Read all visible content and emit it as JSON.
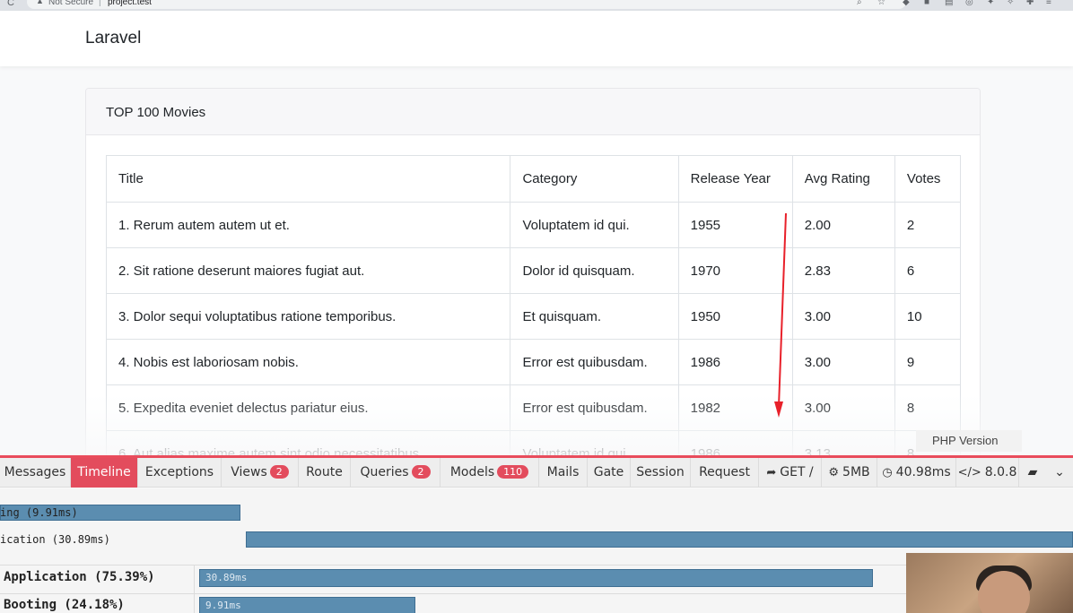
{
  "browser": {
    "not_secure": "Not Secure",
    "separator": "|",
    "url": "project.test"
  },
  "navbar": {
    "brand": "Laravel"
  },
  "card": {
    "title": "TOP 100 Movies",
    "columns": [
      "Title",
      "Category",
      "Release Year",
      "Avg Rating",
      "Votes"
    ],
    "rows": [
      {
        "title": "1. Rerum autem autem ut et.",
        "category": "Voluptatem id qui.",
        "year": "1955",
        "rating": "2.00",
        "votes": "2"
      },
      {
        "title": "2. Sit ratione deserunt maiores fugiat aut.",
        "category": "Dolor id quisquam.",
        "year": "1970",
        "rating": "2.83",
        "votes": "6"
      },
      {
        "title": "3. Dolor sequi voluptatibus ratione temporibus.",
        "category": "Et quisquam.",
        "year": "1950",
        "rating": "3.00",
        "votes": "10"
      },
      {
        "title": "4. Nobis est laboriosam nobis.",
        "category": "Error est quibusdam.",
        "year": "1986",
        "rating": "3.00",
        "votes": "9"
      },
      {
        "title": "5. Expedita eveniet delectus pariatur eius.",
        "category": "Error est quibusdam.",
        "year": "1982",
        "rating": "3.00",
        "votes": "8"
      },
      {
        "title": "6. Aut alias maxime autem sint odio necessitatibus.",
        "category": "Voluptatem id qui.",
        "year": "1986",
        "rating": "3.13",
        "votes": "8"
      }
    ]
  },
  "tooltip": {
    "text": "PHP Version"
  },
  "debugbar": {
    "tabs": {
      "messages": "Messages",
      "timeline": "Timeline",
      "exceptions": "Exceptions",
      "views": "Views",
      "views_count": "2",
      "route": "Route",
      "queries": "Queries",
      "queries_count": "2",
      "models": "Models",
      "models_count": "110",
      "mails": "Mails",
      "gate": "Gate",
      "session": "Session",
      "request": "Request"
    },
    "stats": {
      "method": "GET /",
      "memory": "5MB",
      "time": "40.98ms",
      "php_version": "8.0.8"
    },
    "timeline": {
      "booting_label": "ing (9.91ms)",
      "application_label": "ication (30.89ms)",
      "summary": [
        {
          "label": "Application (75.39%)",
          "bar_text": "30.89ms",
          "percent": 75.39
        },
        {
          "label": "Booting (24.18%)",
          "bar_text": "9.91ms",
          "percent": 24.18
        }
      ]
    },
    "accent_color": "#e34c5d"
  }
}
